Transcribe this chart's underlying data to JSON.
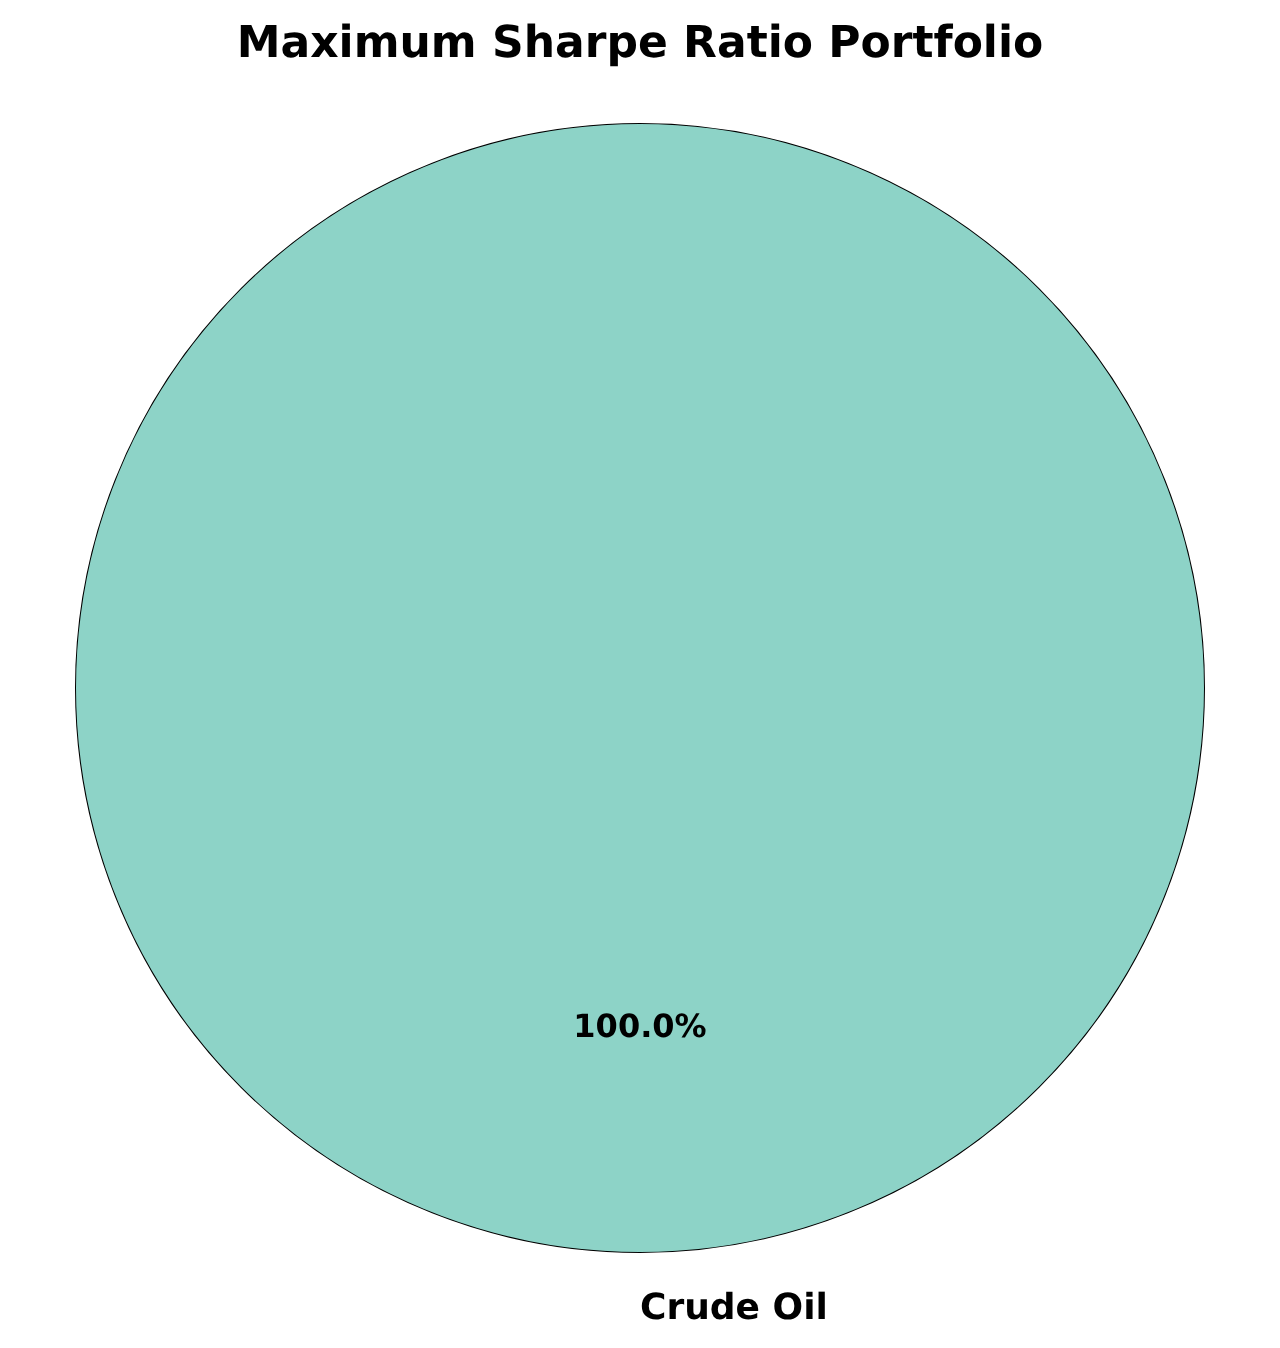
{
  "chart_data": {
    "type": "pie",
    "title": "Maximum Sharpe Ratio Portfolio",
    "categories": [
      "Crude Oil"
    ],
    "values": [
      100
    ],
    "colors": [
      "#8dd3c7"
    ],
    "value_labels": [
      "100.0%"
    ],
    "legend": false
  }
}
